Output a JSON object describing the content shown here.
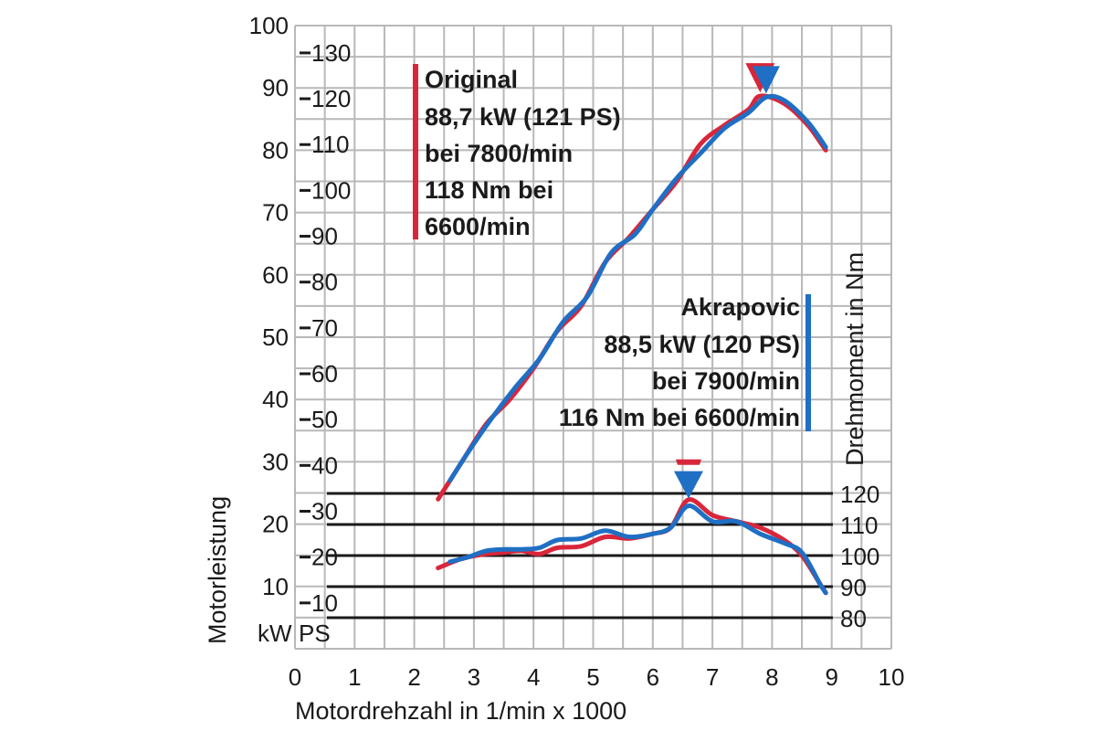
{
  "colors": {
    "original": "#d9263a",
    "akrapovic": "#1f6fc4",
    "grid": "#b8b8b8",
    "ink": "#1a1a1a"
  },
  "labels": {
    "xlabel": "Motordrehzahl in 1/min x 1000",
    "ylabel_power": "Motorleistung",
    "ylabel_torque": "Drehmoment in Nm",
    "unit_kw": "kW",
    "unit_ps": "PS"
  },
  "legend": {
    "original": [
      "Original",
      "88,7 kW (121 PS)",
      "bei 7800/min",
      "118 Nm bei",
      "6600/min"
    ],
    "akrapovic": [
      "Akrapovic",
      "88,5 kW (120 PS)",
      "bei 7900/min",
      "116 Nm bei 6600/min"
    ]
  },
  "chart_data": {
    "type": "line",
    "xlabel": "Motordrehzahl in 1/min x 1000",
    "xlim": [
      0,
      10
    ],
    "x_ticks": [
      0,
      1,
      2,
      3,
      4,
      5,
      6,
      7,
      8,
      9,
      10
    ],
    "ylabel": "Motorleistung",
    "ylim_kw": [
      0,
      100
    ],
    "y_ticks_kw": [
      10,
      20,
      30,
      40,
      50,
      60,
      70,
      80,
      90,
      100
    ],
    "y_ticks_ps": [
      10,
      20,
      30,
      40,
      50,
      60,
      70,
      80,
      90,
      100,
      110,
      120,
      130
    ],
    "ylabel_torque": "Drehmoment in Nm",
    "y_ticks_torque_nm": [
      80,
      90,
      100,
      110,
      120
    ],
    "grid": true,
    "legend_position": "top-left and right",
    "series": [
      {
        "name": "Original",
        "quantity": "power_kw",
        "x": [
          2.4,
          2.8,
          3.2,
          3.6,
          4.0,
          4.4,
          4.8,
          5.2,
          5.6,
          6.0,
          6.4,
          6.8,
          7.2,
          7.6,
          7.8,
          8.2,
          8.6,
          8.9
        ],
        "y": [
          24,
          30,
          36,
          40,
          45,
          51,
          55,
          62,
          66,
          70.5,
          75,
          81,
          84,
          86.5,
          88.7,
          87.5,
          84,
          80
        ]
      },
      {
        "name": "Akrapovic",
        "quantity": "power_kw",
        "x": [
          2.6,
          2.9,
          3.3,
          3.7,
          4.1,
          4.5,
          4.9,
          5.3,
          5.7,
          6.0,
          6.4,
          6.8,
          7.2,
          7.6,
          7.9,
          8.2,
          8.6,
          8.9
        ],
        "y": [
          27,
          31.5,
          37,
          42,
          46.5,
          52.5,
          56.5,
          63.5,
          66.5,
          70.5,
          75.5,
          79.5,
          83.5,
          86,
          88.5,
          88,
          84.5,
          80.5
        ]
      },
      {
        "name": "Original",
        "quantity": "torque_nm",
        "x": [
          2.4,
          2.8,
          3.2,
          3.5,
          3.8,
          4.1,
          4.4,
          4.8,
          5.2,
          5.6,
          6.0,
          6.3,
          6.6,
          7.0,
          7.4,
          7.8,
          8.2,
          8.5,
          8.8,
          8.9
        ],
        "y": [
          96,
          99,
          100.5,
          101,
          101.5,
          100.5,
          102.5,
          103,
          106,
          105.5,
          107,
          109,
          118,
          113,
          111,
          109,
          105,
          100,
          91,
          88
        ]
      },
      {
        "name": "Akrapovic",
        "quantity": "torque_nm",
        "x": [
          2.6,
          2.9,
          3.2,
          3.5,
          3.8,
          4.1,
          4.4,
          4.8,
          5.2,
          5.6,
          6.0,
          6.3,
          6.6,
          7.0,
          7.4,
          7.8,
          8.2,
          8.5,
          8.8,
          8.9
        ],
        "y": [
          98,
          99.5,
          101.5,
          102,
          102,
          102.5,
          105,
          105.5,
          108,
          106,
          107,
          109,
          116,
          111,
          111,
          107,
          104,
          101,
          91,
          88
        ]
      }
    ],
    "markers": [
      {
        "series": "Original",
        "quantity": "power_kw",
        "x": 7.8,
        "y": 88.7
      },
      {
        "series": "Akrapovic",
        "quantity": "power_kw",
        "x": 7.9,
        "y": 88.5
      },
      {
        "series": "Original",
        "quantity": "torque_nm",
        "x": 6.6,
        "y": 118
      },
      {
        "series": "Akrapovic",
        "quantity": "torque_nm",
        "x": 6.6,
        "y": 116
      }
    ]
  }
}
